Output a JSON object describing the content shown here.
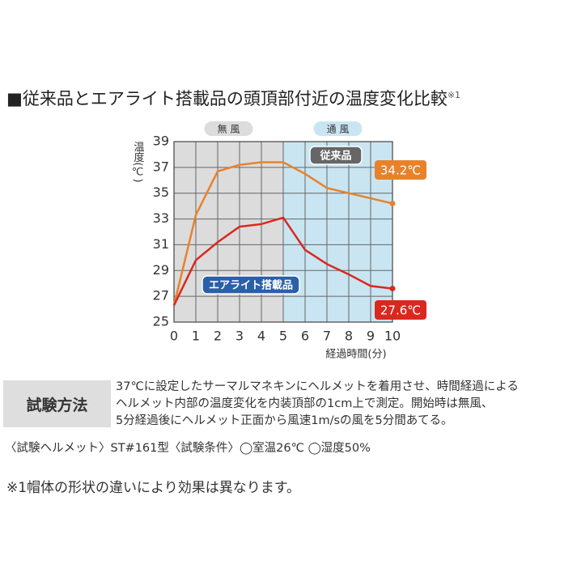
{
  "chart_data": {
    "type": "line",
    "title": "■従来品とエアライト搭載品の頭頂部付近の温度変化比較",
    "title_note": "※1",
    "y_label": "温度(℃)",
    "x_label": "経過時間(分)",
    "zones": [
      {
        "label": "無 風",
        "from": 0,
        "to": 5,
        "color": "#dcdcdc"
      },
      {
        "label": "通 風",
        "from": 5,
        "to": 10,
        "color": "#c9e5f2"
      }
    ],
    "x": [
      0,
      1,
      2,
      3,
      4,
      5,
      6,
      7,
      8,
      9,
      10
    ],
    "series": [
      {
        "name": "従来品",
        "color": "#e8822a",
        "label_color": "#666666",
        "values": [
          26.3,
          33.3,
          36.7,
          37.2,
          37.4,
          37.4,
          36.5,
          35.4,
          35.0,
          34.6,
          34.2
        ],
        "value_labels": [
          null,
          null,
          null,
          null,
          null,
          null,
          null,
          null,
          null,
          null,
          "34.2℃"
        ]
      },
      {
        "name": "エアライト搭載品",
        "color": "#d9281f",
        "label_color": "#2b5fa8",
        "values": [
          26.3,
          29.8,
          31.2,
          32.4,
          32.6,
          33.1,
          30.6,
          29.5,
          28.7,
          27.8,
          27.6
        ],
        "value_labels": [
          null,
          null,
          null,
          null,
          null,
          null,
          null,
          null,
          null,
          null,
          "27.6℃"
        ]
      }
    ],
    "xlim": [
      0,
      10
    ],
    "xticks": [
      0,
      1,
      2,
      3,
      4,
      5,
      6,
      7,
      8,
      9,
      10
    ],
    "ylim": [
      25,
      39
    ],
    "yticks": [
      25,
      27,
      29,
      31,
      33,
      35,
      37,
      39
    ],
    "grid": true
  },
  "method": {
    "heading": "試験方法",
    "lines": [
      "37℃に設定したサーマルマネキンにヘルメットを着用させ、時間経過による",
      "ヘルメット内部の温度変化を内装頂部の1cm上で測定。開始時は無風、",
      "5分経過後にヘルメット正面から風速1m/sの風を5分間あてる。"
    ]
  },
  "conditions": "〈試験ヘルメット〉ST#161型〈試験条件〉◯室温26℃ ◯湿度50%",
  "footnote": "※1帽体の形状の違いにより効果は異なります。"
}
